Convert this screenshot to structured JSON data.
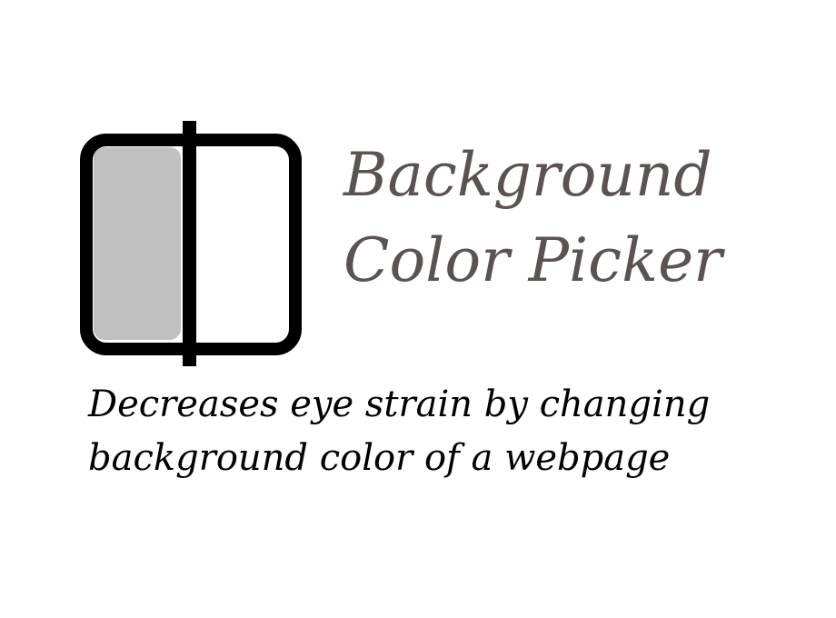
{
  "header": {
    "icon": "background-color-picker-icon",
    "title_line1": "Background",
    "title_line2": "Color Picker"
  },
  "tagline": {
    "line1": "Decreases eye strain by changing",
    "line2": "background color of a webpage"
  },
  "colors": {
    "title": "#5a5352",
    "tagline": "#000000",
    "icon_stroke": "#000000",
    "icon_left_fill": "#c0c0c0",
    "icon_right_fill": "#ffffff",
    "background": "#ffffff"
  }
}
